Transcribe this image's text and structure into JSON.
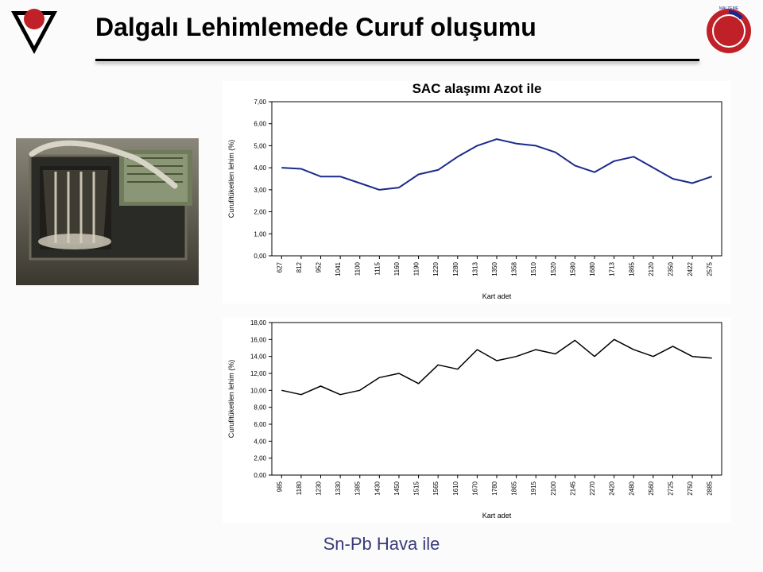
{
  "title": "Dalgalı Lehimlemede Curuf oluşumu",
  "footer": "Sn-Pb Hava ile",
  "logo_left": {
    "circle_fill": "#c02028",
    "wing_fill": "#000000",
    "inner_fill": "#ffffff"
  },
  "logo_right": {
    "outer_fill": "#c02028",
    "accent_fill": "#1b2a8a"
  },
  "chart1": {
    "title": "SAC alaşımı Azot ile",
    "type": "line",
    "ylabel": "Curuf/tüketilen lehim (%)",
    "xlabel": "Kart adet",
    "ylim": [
      0,
      7
    ],
    "ytick_step": 1.0,
    "x_categories": [
      "627",
      "812",
      "952",
      "1041",
      "1100",
      "1115",
      "1160",
      "1190",
      "1220",
      "1280",
      "1313",
      "1350",
      "1358",
      "1510",
      "1520",
      "1580",
      "1680",
      "1713",
      "1865",
      "2120",
      "2350",
      "2422",
      "2575"
    ],
    "values": [
      4.0,
      3.95,
      3.6,
      3.6,
      3.3,
      3.0,
      3.1,
      3.7,
      3.9,
      4.5,
      5.0,
      5.3,
      5.1,
      5.0,
      4.7,
      4.1,
      3.8,
      4.3,
      4.5,
      4.0,
      3.5,
      3.3,
      3.6
    ],
    "line_color": "#1b2a8a",
    "line_width": 2,
    "background_color": "#ffffff",
    "axis_color": "#000000",
    "tick_fontsize": 8,
    "label_fontsize": 9,
    "title_fontsize": 17
  },
  "chart2": {
    "title": "",
    "type": "line",
    "ylabel": "Curuf/tüketilen lehim (%)",
    "xlabel": "Kart adet",
    "ylim": [
      0,
      18
    ],
    "ytick_step": 2.0,
    "x_categories": [
      "985",
      "1180",
      "1230",
      "1330",
      "1385",
      "1430",
      "1450",
      "1515",
      "1565",
      "1610",
      "1670",
      "1780",
      "1865",
      "1915",
      "2100",
      "2145",
      "2270",
      "2420",
      "2480",
      "2560",
      "2725",
      "2750",
      "2885"
    ],
    "values": [
      10.0,
      9.5,
      10.5,
      9.5,
      10.0,
      11.5,
      12.0,
      10.8,
      13.0,
      12.5,
      14.8,
      13.5,
      14.0,
      14.8,
      14.3,
      15.9,
      14.0,
      16.0,
      14.8,
      14.0,
      15.2,
      14.0,
      13.8
    ],
    "line_color": "#000000",
    "line_width": 1.5,
    "background_color": "#ffffff",
    "axis_color": "#000000",
    "tick_fontsize": 8,
    "label_fontsize": 9
  }
}
